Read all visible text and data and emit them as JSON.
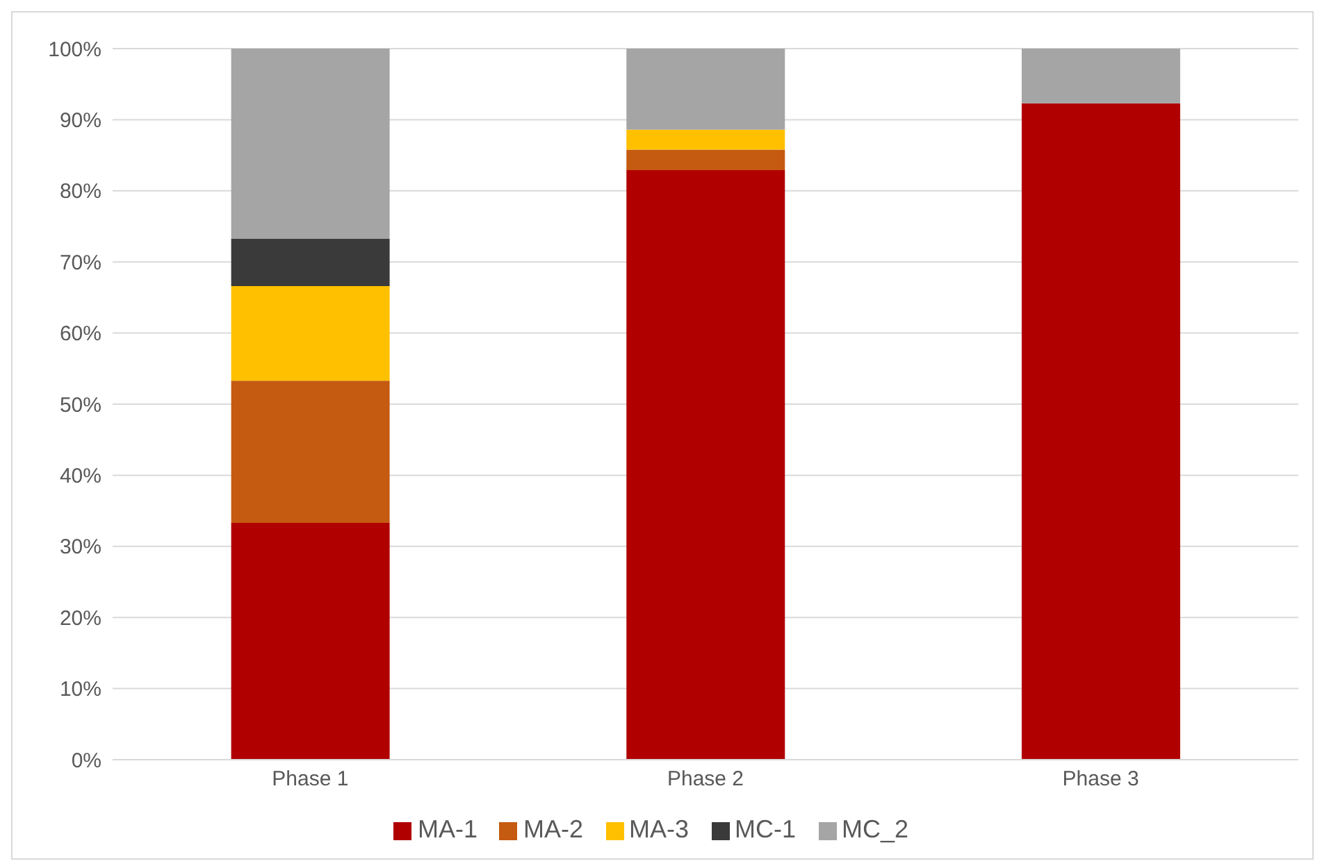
{
  "chart_data": {
    "type": "bar",
    "stacked": true,
    "categories": [
      "Phase 1",
      "Phase 2",
      "Phase 3"
    ],
    "series": [
      {
        "name": "MA-1",
        "color": "#b00000",
        "values": [
          33.3,
          82.9,
          92.3
        ]
      },
      {
        "name": "MA-2",
        "color": "#c55a11",
        "values": [
          20,
          2.9,
          0
        ]
      },
      {
        "name": "MA-3",
        "color": "#ffc000",
        "values": [
          13.3,
          2.8,
          0
        ]
      },
      {
        "name": "MC-1",
        "color": "#3a3a3a",
        "values": [
          6.7,
          0,
          0
        ]
      },
      {
        "name": "MC_2",
        "color": "#a5a5a5",
        "values": [
          26.7,
          11.4,
          7.7
        ]
      }
    ],
    "ylim": [
      0,
      100
    ],
    "yticks": [
      {
        "value": 0,
        "label": "0%"
      },
      {
        "value": 10,
        "label": "10%"
      },
      {
        "value": 20,
        "label": "20%"
      },
      {
        "value": 30,
        "label": "30%"
      },
      {
        "value": 40,
        "label": "40%"
      },
      {
        "value": 50,
        "label": "50%"
      },
      {
        "value": 60,
        "label": "60%"
      },
      {
        "value": 70,
        "label": "70%"
      },
      {
        "value": 80,
        "label": "80%"
      },
      {
        "value": 90,
        "label": "90%"
      },
      {
        "value": 100,
        "label": "100%"
      }
    ],
    "grid": "y",
    "legend": "bottom"
  }
}
